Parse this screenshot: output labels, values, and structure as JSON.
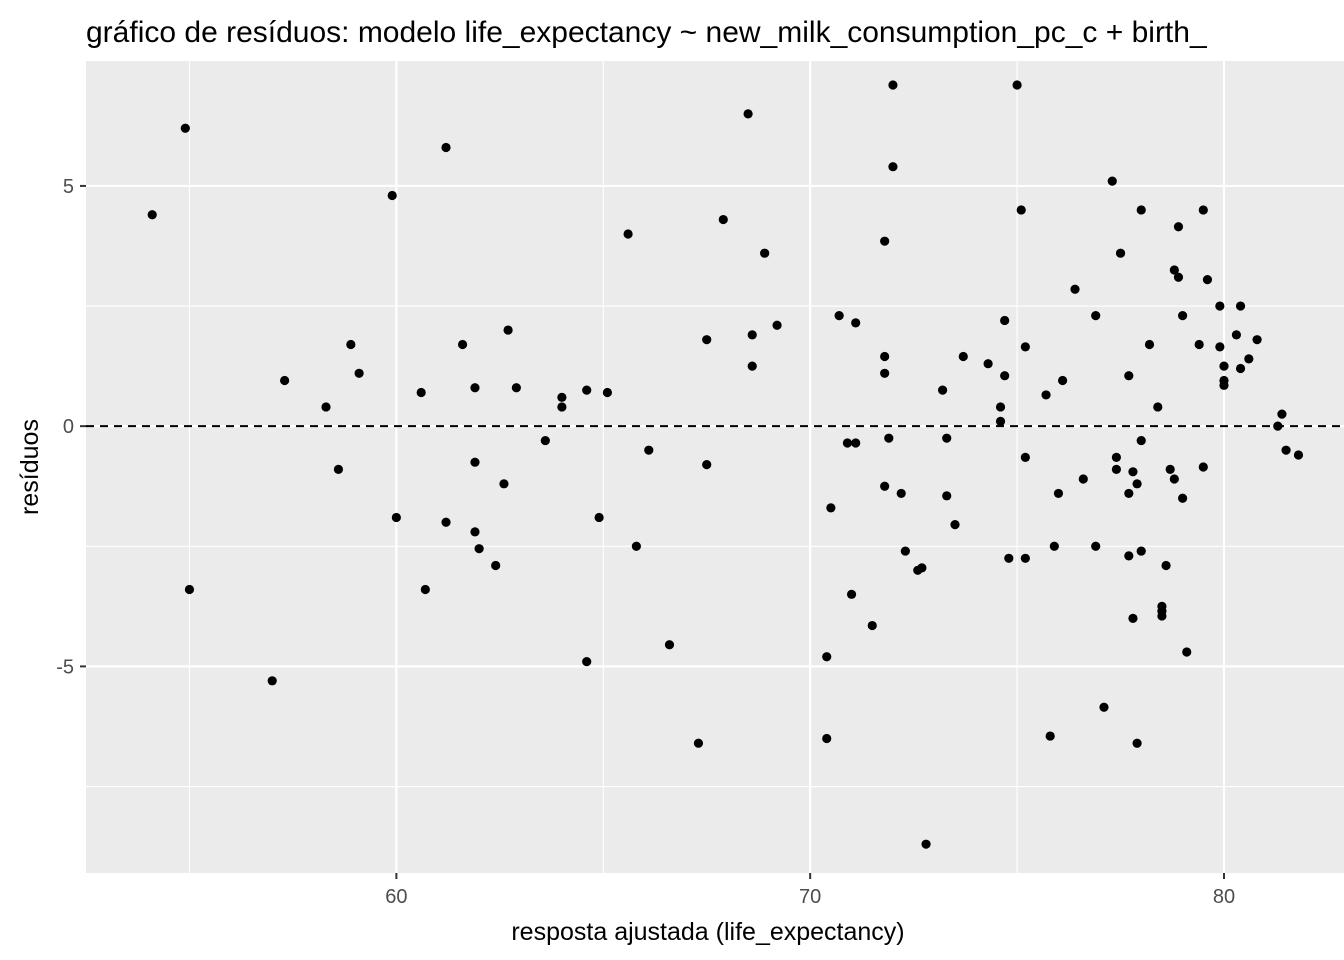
{
  "chart_data": {
    "type": "scatter",
    "title": "gráfico de resíduos: modelo life_expectancy ~ new_milk_consumption_pc_c + birth_",
    "xlabel": "resposta ajustada (life_expectancy)",
    "ylabel": "resíduos",
    "xlim": [
      52.5,
      82.9
    ],
    "ylim": [
      -9.3,
      7.6
    ],
    "x_ticks": [
      60,
      70,
      80
    ],
    "x_tick_labels": [
      "60",
      "70",
      "80"
    ],
    "y_ticks": [
      -5,
      0,
      5
    ],
    "y_tick_labels": [
      "-5",
      "0",
      "5"
    ],
    "x_minor": [
      55,
      65,
      75
    ],
    "y_minor": [
      -7.5,
      -2.5,
      2.5
    ],
    "reference_line": {
      "y": 0,
      "style": "dashed"
    },
    "colors": {
      "panel": "#ebebeb",
      "grid": "#ffffff",
      "point": "#000000",
      "tick_text": "#4d4d4d"
    },
    "grid": true,
    "legend": "none",
    "points": [
      {
        "x": 54.1,
        "y": 4.4
      },
      {
        "x": 54.9,
        "y": 6.2
      },
      {
        "x": 55.0,
        "y": -3.4
      },
      {
        "x": 57.0,
        "y": -5.3
      },
      {
        "x": 57.3,
        "y": 0.95
      },
      {
        "x": 58.3,
        "y": 0.4
      },
      {
        "x": 58.6,
        "y": -0.9
      },
      {
        "x": 58.9,
        "y": 1.7
      },
      {
        "x": 59.1,
        "y": 1.1
      },
      {
        "x": 59.9,
        "y": 4.8
      },
      {
        "x": 60.0,
        "y": -1.9
      },
      {
        "x": 60.6,
        "y": 0.7
      },
      {
        "x": 60.7,
        "y": -3.4
      },
      {
        "x": 61.2,
        "y": 5.8
      },
      {
        "x": 61.2,
        "y": -2.0
      },
      {
        "x": 61.6,
        "y": 1.7
      },
      {
        "x": 61.9,
        "y": 0.8
      },
      {
        "x": 61.9,
        "y": -0.75
      },
      {
        "x": 61.9,
        "y": -2.2
      },
      {
        "x": 62.0,
        "y": -2.55
      },
      {
        "x": 62.4,
        "y": -2.9
      },
      {
        "x": 62.6,
        "y": -1.2
      },
      {
        "x": 62.7,
        "y": 2.0
      },
      {
        "x": 62.9,
        "y": 0.8
      },
      {
        "x": 63.6,
        "y": -0.3
      },
      {
        "x": 64.0,
        "y": 0.6
      },
      {
        "x": 64.0,
        "y": 0.4
      },
      {
        "x": 64.6,
        "y": 0.75
      },
      {
        "x": 64.6,
        "y": -4.9
      },
      {
        "x": 64.9,
        "y": -1.9
      },
      {
        "x": 65.1,
        "y": 0.7
      },
      {
        "x": 65.6,
        "y": 4.0
      },
      {
        "x": 65.8,
        "y": -2.5
      },
      {
        "x": 66.1,
        "y": -0.5
      },
      {
        "x": 66.6,
        "y": -4.55
      },
      {
        "x": 67.3,
        "y": -6.6
      },
      {
        "x": 67.5,
        "y": 1.8
      },
      {
        "x": 67.5,
        "y": -0.8
      },
      {
        "x": 67.9,
        "y": 4.3
      },
      {
        "x": 68.5,
        "y": 6.5
      },
      {
        "x": 68.6,
        "y": 1.9
      },
      {
        "x": 68.6,
        "y": 1.25
      },
      {
        "x": 68.9,
        "y": 3.6
      },
      {
        "x": 69.2,
        "y": 2.1
      },
      {
        "x": 70.4,
        "y": -4.8
      },
      {
        "x": 70.4,
        "y": -6.5
      },
      {
        "x": 70.5,
        "y": -1.7
      },
      {
        "x": 70.7,
        "y": 2.3
      },
      {
        "x": 70.9,
        "y": -0.35
      },
      {
        "x": 71.0,
        "y": -3.5
      },
      {
        "x": 71.1,
        "y": 2.15
      },
      {
        "x": 71.1,
        "y": -0.35
      },
      {
        "x": 71.5,
        "y": -4.15
      },
      {
        "x": 71.8,
        "y": 3.85
      },
      {
        "x": 71.8,
        "y": 1.45
      },
      {
        "x": 71.8,
        "y": 1.1
      },
      {
        "x": 71.8,
        "y": -1.25
      },
      {
        "x": 71.9,
        "y": -0.25
      },
      {
        "x": 72.0,
        "y": 5.4
      },
      {
        "x": 72.0,
        "y": 7.1
      },
      {
        "x": 72.2,
        "y": -1.4
      },
      {
        "x": 72.3,
        "y": -2.6
      },
      {
        "x": 72.6,
        "y": -3.0
      },
      {
        "x": 72.7,
        "y": -2.95
      },
      {
        "x": 72.8,
        "y": -8.7
      },
      {
        "x": 73.2,
        "y": 0.75
      },
      {
        "x": 73.3,
        "y": -0.25
      },
      {
        "x": 73.3,
        "y": -1.45
      },
      {
        "x": 73.5,
        "y": -2.05
      },
      {
        "x": 73.7,
        "y": 1.45
      },
      {
        "x": 74.3,
        "y": 1.3
      },
      {
        "x": 74.6,
        "y": 0.4
      },
      {
        "x": 74.6,
        "y": 0.1
      },
      {
        "x": 74.7,
        "y": 1.05
      },
      {
        "x": 74.7,
        "y": 2.2
      },
      {
        "x": 74.8,
        "y": -2.75
      },
      {
        "x": 75.0,
        "y": 7.1
      },
      {
        "x": 75.1,
        "y": 4.5
      },
      {
        "x": 75.2,
        "y": 1.65
      },
      {
        "x": 75.2,
        "y": -0.65
      },
      {
        "x": 75.2,
        "y": -2.75
      },
      {
        "x": 75.7,
        "y": 0.65
      },
      {
        "x": 75.8,
        "y": -6.45
      },
      {
        "x": 75.9,
        "y": -2.5
      },
      {
        "x": 76.0,
        "y": -1.4
      },
      {
        "x": 76.1,
        "y": 0.95
      },
      {
        "x": 76.4,
        "y": 2.85
      },
      {
        "x": 76.6,
        "y": -1.1
      },
      {
        "x": 76.9,
        "y": 2.3
      },
      {
        "x": 76.9,
        "y": -2.5
      },
      {
        "x": 77.1,
        "y": -5.85
      },
      {
        "x": 77.3,
        "y": 5.1
      },
      {
        "x": 77.4,
        "y": -0.65
      },
      {
        "x": 77.4,
        "y": -0.9
      },
      {
        "x": 77.5,
        "y": 3.6
      },
      {
        "x": 77.7,
        "y": 1.05
      },
      {
        "x": 77.7,
        "y": -1.4
      },
      {
        "x": 77.7,
        "y": -2.7
      },
      {
        "x": 77.8,
        "y": -0.95
      },
      {
        "x": 77.8,
        "y": -4.0
      },
      {
        "x": 77.9,
        "y": -1.2
      },
      {
        "x": 77.9,
        "y": -6.6
      },
      {
        "x": 78.0,
        "y": 4.5
      },
      {
        "x": 78.0,
        "y": -0.3
      },
      {
        "x": 78.0,
        "y": -2.6
      },
      {
        "x": 78.2,
        "y": 1.7
      },
      {
        "x": 78.4,
        "y": 0.4
      },
      {
        "x": 78.5,
        "y": -3.75
      },
      {
        "x": 78.5,
        "y": -3.95
      },
      {
        "x": 78.5,
        "y": -3.85
      },
      {
        "x": 78.6,
        "y": -2.9
      },
      {
        "x": 78.7,
        "y": -0.9
      },
      {
        "x": 78.8,
        "y": 3.25
      },
      {
        "x": 78.8,
        "y": -1.1
      },
      {
        "x": 78.9,
        "y": 4.15
      },
      {
        "x": 78.9,
        "y": 3.1
      },
      {
        "x": 79.0,
        "y": 2.3
      },
      {
        "x": 79.0,
        "y": -1.5
      },
      {
        "x": 79.1,
        "y": -4.7
      },
      {
        "x": 79.4,
        "y": 1.7
      },
      {
        "x": 79.5,
        "y": 4.5
      },
      {
        "x": 79.5,
        "y": -0.85
      },
      {
        "x": 79.6,
        "y": 3.05
      },
      {
        "x": 79.9,
        "y": 2.5
      },
      {
        "x": 79.9,
        "y": 1.65
      },
      {
        "x": 80.0,
        "y": 1.25
      },
      {
        "x": 80.0,
        "y": 0.95
      },
      {
        "x": 80.0,
        "y": 0.85
      },
      {
        "x": 80.3,
        "y": 1.9
      },
      {
        "x": 80.4,
        "y": 2.5
      },
      {
        "x": 80.4,
        "y": 1.2
      },
      {
        "x": 80.6,
        "y": 1.4
      },
      {
        "x": 80.8,
        "y": 1.8
      },
      {
        "x": 81.3,
        "y": 0.0
      },
      {
        "x": 81.4,
        "y": 0.25
      },
      {
        "x": 81.5,
        "y": -0.5
      },
      {
        "x": 81.8,
        "y": -0.6
      }
    ]
  }
}
